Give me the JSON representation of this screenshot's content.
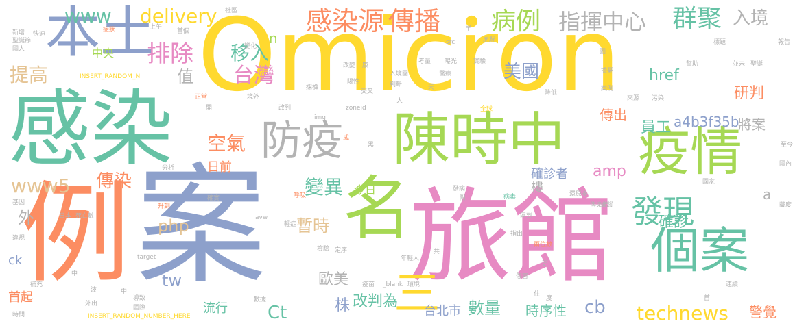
{
  "palette": [
    "#66c2a5",
    "#fc8d62",
    "#8da0cb",
    "#e78ac3",
    "#a6d854",
    "#ffd92f",
    "#e5c494",
    "#b3b3b3"
  ],
  "words": {
    "omicron": "Omicron",
    "li": "例",
    "an": "案",
    "ganran_big": "感染",
    "lvguan": "旅館",
    "ming": "名",
    "chenshizhong": "陳時中",
    "yiqing": "疫情",
    "fangyi": "防疫",
    "bentu": "本土",
    "gean": "個案",
    "faxian": "發現",
    "ganranyuan": "感染源",
    "chuanbo": "傳播",
    "bingli": "病例",
    "zhihuizhongxin": "指揮中心",
    "qunju": "群聚",
    "rujing": "入境",
    "paichu": "排除",
    "yiru": "移入",
    "taiwan": "台灣",
    "meiguo": "美國",
    "tigao": "提高",
    "zhi": "值",
    "kongqi": "空氣",
    "www": "www",
    "www5": "www5",
    "chuanran": "傳染",
    "delivery": "delivery",
    "zhongyang": "中央",
    "n": "n",
    "href": "href",
    "yanpan": "研判",
    "chuanchu": "傳出",
    "yuangong": "員工",
    "a4b3f35b": "a4b3f35b",
    "jiangan": "將案",
    "amp": "amp",
    "riqian": "日前",
    "quezhenzhe": "確診者",
    "lou": "樓",
    "bianyi": "變異",
    "jinri": "今日",
    "wai": "外",
    "php": "php",
    "zanshi": "暫時",
    "quezhen": "確診",
    "a": "a",
    "ck": "ck",
    "tw": "tw",
    "oumei": "歐美",
    "shouqi": "首起",
    "san": "三",
    "zhu": "株",
    "gaipanwei": "改判為",
    "liuxing": "流行",
    "Ct": "Ct",
    "taibeishi": "台北市",
    "shuliang": "數量",
    "shixuxing": "時序性",
    "cb": "cb",
    "technews": "technews",
    "jingjue": "警覺",
    "xinzeng": "新增",
    "kuaisu": "快速",
    "shengxun": "聖誕節",
    "guoren": "國人",
    "insert_random_n": "INSERT_RANDOM_N",
    "zhengzhuang": "症狀",
    "shangwu": "上午",
    "shequ": "社區",
    "shouri": "首個",
    "bianhua": "變化",
    "src": "src",
    "bengjie": "崩解",
    "zao": "早",
    "biaoti": "標題",
    "baogao": "報告",
    "shengcheng": "聖誕",
    "fei": "並未",
    "zhiliao": "幫助",
    "tu": "圖",
    "gaibian": "改變",
    "kang": "康",
    "kaoliang": "考量",
    "baoguang": "曝光",
    "shiyan": "實驗",
    "rujingzhe": "入境團",
    "yishi": "醫療",
    "shenghu": "擔憂",
    "yangxing": "陽性",
    "panduan": "判斷",
    "jiaoyou": "交叉",
    "jianjie": "簡介",
    "tian": "天",
    "jiangdi": "降低",
    "anli": "案例",
    "laiyuan": "來源",
    "wuran": "污染",
    "zhengshi": "正常",
    "kai": "開",
    "jingwai": "境外",
    "caijian": "採檢",
    "gailie": "改列",
    "zoneid": "zoneid",
    "xiangren": "人",
    "quanqiu": "全球",
    "img": "img",
    "cheng": "成",
    "jiamo": "黑",
    "fenxi": "分析",
    "jiyin": "基因",
    "shengdao": "升到",
    "sisiwang": "死亡數",
    "riben": "日本",
    "lianhui": "違規",
    "jianzhi": "確實",
    "yiliao": "輕症",
    "huxi": "呼吸",
    "avw": "avw",
    "yongxing": "發病",
    "fu": "附",
    "bingwu": "病毒",
    "haiwai": "還原多",
    "guojia": "國家",
    "chuanranhuo": "傳染給",
    "zhuisu": "追蹤",
    "ququ": "區到",
    "guonei": "國內",
    "xiaozhi": "藏度",
    "chucuo": "指出",
    "target": "target",
    "jianyan": "檢驗",
    "dingxu": "定序",
    "nianqingren": "年輕人",
    "gong": "共",
    "shouwei": "兩位數",
    "geng": "更",
    "shanghai": "傷害",
    "zhong": "中",
    "buchong": "補充",
    "bo": "波",
    "daozhi": "導致",
    "guoji": "國際",
    "waichu": "外出",
    "insert_number": "INSERT_RANDOM_NUMBER_HERE",
    "yiquan": "疫苗",
    "blank": "_blank",
    "huanjing": "環境",
    "zhu2": "住",
    "du": "度",
    "lianjie": "連續",
    "shijian": "時間",
    "shui": "數據",
    "shou": "首",
    "zhida": "至今"
  }
}
